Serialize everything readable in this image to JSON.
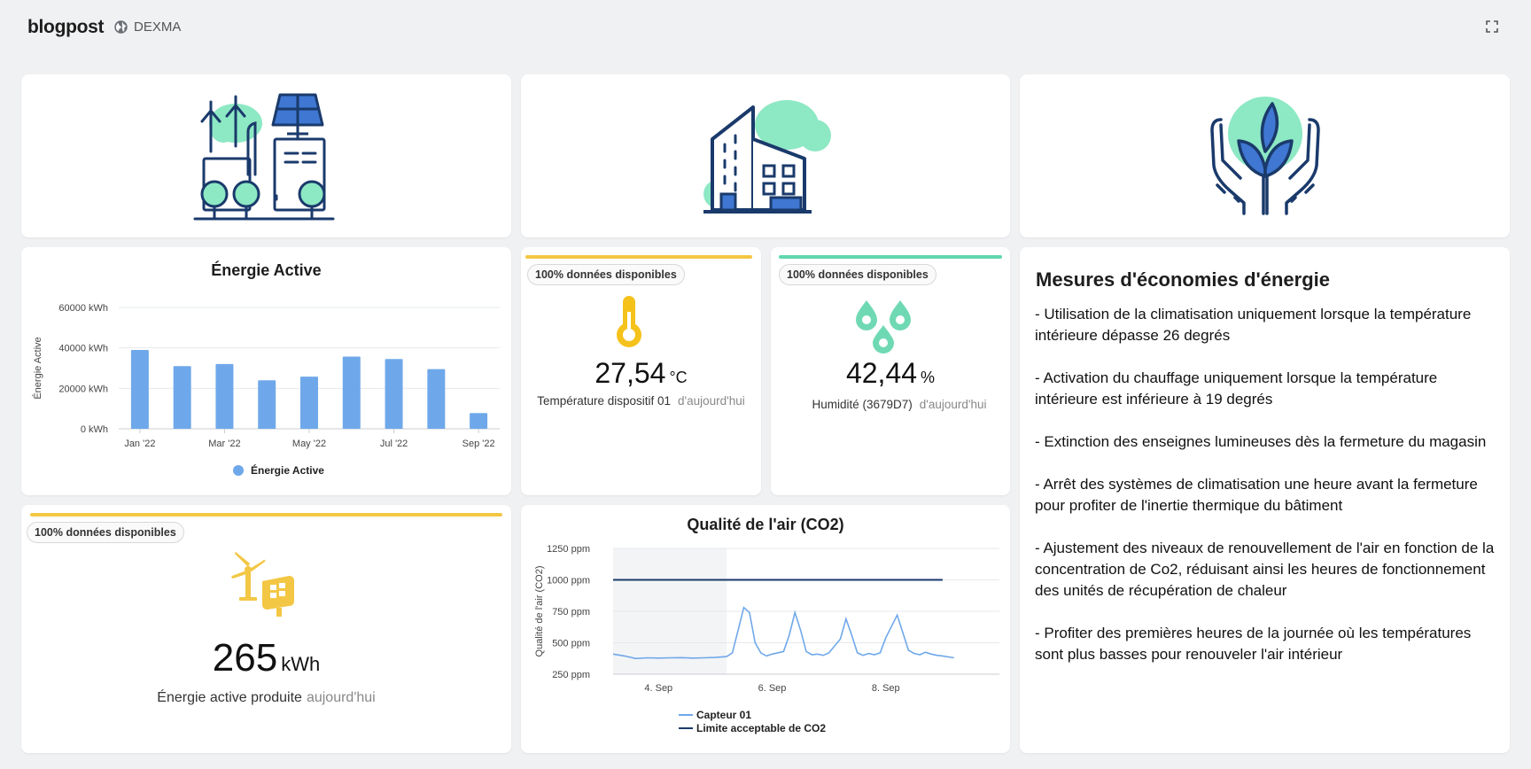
{
  "header": {
    "title": "blogpost",
    "org": "DEXMA"
  },
  "colors": {
    "background": "#f0f1f3",
    "bar_blue": "#6fa8ea",
    "navy": "#1a3a6b",
    "mint": "#8de8c4",
    "yellow": "#f3c744",
    "teal": "#5fd6b0"
  },
  "illustrations": [
    "energy-plant-illustration",
    "building-illustration",
    "hands-plant-illustration"
  ],
  "energy_chart_card": {
    "title": "Énergie Active",
    "chart_data": {
      "type": "bar",
      "title": "Énergie Active",
      "ylabel": "Énergie Active",
      "ylim": [
        0,
        60000
      ],
      "yticks": [
        "0 kWh",
        "20000 kWh",
        "40000 kWh",
        "60000 kWh"
      ],
      "ytick_values": [
        0,
        20000,
        40000,
        60000
      ],
      "categories": [
        "Jan '22",
        "Feb '22",
        "Mar '22",
        "Apr '22",
        "May '22",
        "Jun '22",
        "Jul '22",
        "Aug '22",
        "Sep '22"
      ],
      "xticks_shown": [
        "Jan '22",
        "Mar '22",
        "May '22",
        "Jul '22",
        "Sep '22"
      ],
      "series": [
        {
          "name": "Énergie Active",
          "values": [
            39000,
            31000,
            32000,
            24000,
            25800,
            35700,
            34500,
            29500,
            7800
          ]
        }
      ],
      "legend_position": "bottom",
      "grid": true
    }
  },
  "temperature_card": {
    "badge": "100% données disponibles",
    "value": "27,54",
    "unit": "°C",
    "label": "Température dispositif 01",
    "period": "d'aujourd'hui",
    "accent": "#f3c744",
    "icon": "thermometer-icon"
  },
  "humidity_card": {
    "badge": "100% données disponibles",
    "value": "42,44",
    "unit": "%",
    "label": "Humidité (3679D7)",
    "period": "d'aujourd'hui",
    "accent": "#5fd6b0",
    "icon": "water-drops-icon"
  },
  "produced_card": {
    "badge": "100% données disponibles",
    "value": "265",
    "unit": "kWh",
    "label": "Énergie active produite",
    "period": "aujourd'hui",
    "accent": "#f3c744",
    "icon": "wind-solar-icon"
  },
  "co2_card": {
    "title": "Qualité de l'air (CO2)",
    "chart_data": {
      "type": "line",
      "title": "Qualité de l'air (CO2)",
      "ylabel": "Qualité de l'air (CO2)",
      "ylim": [
        250,
        1250
      ],
      "yticks": [
        "250 ppm",
        "500 ppm",
        "750 ppm",
        "1000 ppm",
        "1250 ppm"
      ],
      "ytick_values": [
        250,
        500,
        750,
        1000,
        1250
      ],
      "xticks": [
        "4. Sep",
        "6. Sep",
        "8. Sep"
      ],
      "xtick_values": [
        4,
        6,
        8
      ],
      "xlim": [
        3.2,
        10
      ],
      "series": [
        {
          "name": "Capteur 01",
          "color": "#6fa8ea",
          "x": [
            3.2,
            3.4,
            3.6,
            3.8,
            4.0,
            4.2,
            4.4,
            4.6,
            4.8,
            5.0,
            5.2,
            5.3,
            5.4,
            5.5,
            5.6,
            5.7,
            5.8,
            5.9,
            6.0,
            6.2,
            6.3,
            6.4,
            6.5,
            6.6,
            6.7,
            6.8,
            6.9,
            7.0,
            7.2,
            7.3,
            7.4,
            7.5,
            7.6,
            7.7,
            7.8,
            7.9,
            8.0,
            8.2,
            8.3,
            8.4,
            8.5,
            8.6,
            8.7,
            8.8,
            8.9,
            9.0,
            9.2
          ],
          "values": [
            410,
            395,
            375,
            380,
            378,
            380,
            382,
            378,
            380,
            383,
            390,
            420,
            600,
            780,
            740,
            500,
            420,
            395,
            410,
            430,
            560,
            740,
            600,
            430,
            405,
            410,
            400,
            420,
            530,
            690,
            560,
            420,
            400,
            415,
            405,
            420,
            540,
            720,
            580,
            440,
            415,
            405,
            425,
            410,
            400,
            395,
            380
          ]
        },
        {
          "name": "Limite acceptable de CO2",
          "color": "#1a3a6b",
          "x": [
            3.2,
            9.0
          ],
          "values": [
            1000,
            1000
          ]
        }
      ],
      "shaded_band_x": [
        3.2,
        5.2
      ],
      "legend_position": "bottom",
      "grid": true
    }
  },
  "measures_card": {
    "title": "Mesures d'économies d'énergie",
    "items": [
      "- Utilisation de la climatisation uniquement lorsque la température intérieure dépasse 26 degrés",
      "- Activation du chauffage uniquement lorsque la température intérieure est inférieure à 19 degrés",
      "- Extinction des enseignes lumineuses dès la fermeture du magasin",
      "- Arrêt des systèmes de climatisation une heure avant la fermeture pour profiter de l'inertie thermique du bâtiment",
      "- Ajustement des niveaux de renouvellement de l'air en fonction de la concentration de Co2, réduisant ainsi les heures de fonctionnement des unités de récupération de chaleur",
      "- Profiter des premières heures de la journée où les températures sont plus basses pour renouveler l'air intérieur"
    ]
  }
}
